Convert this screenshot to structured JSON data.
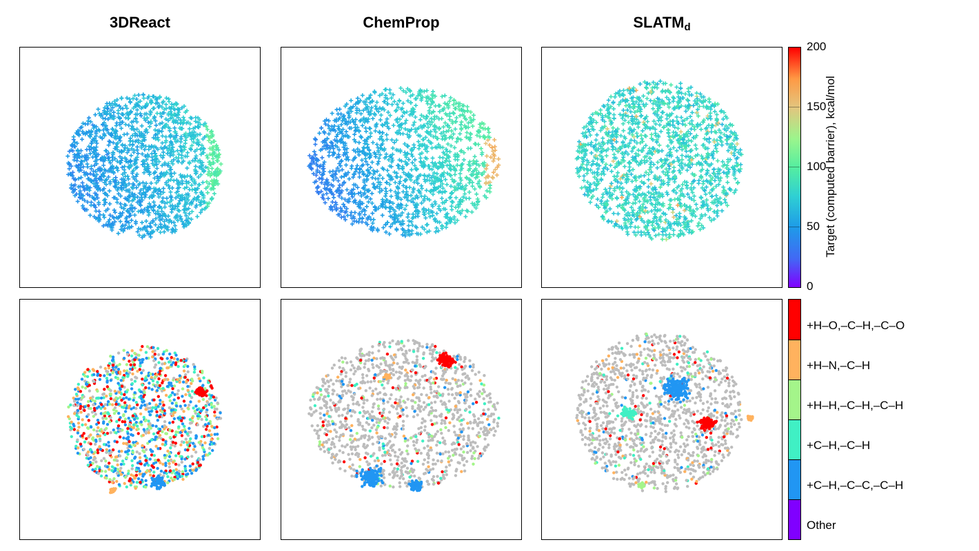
{
  "columns": [
    {
      "title": "3DReact",
      "sub": ""
    },
    {
      "title": "ChemProp",
      "sub": ""
    },
    {
      "title": "SLATM",
      "sub": "d"
    }
  ],
  "chart_data": [
    {
      "type": "scatter",
      "row": "top",
      "color_by": "continuous",
      "colorbar": {
        "label": "Target (computed barrier), kcal/mol",
        "range": [
          0,
          200
        ],
        "ticks": [
          "0",
          "50",
          "100",
          "150",
          "200"
        ],
        "colormap": "rainbow"
      },
      "panels": [
        "3DReact",
        "ChemProp",
        "SLATM_d"
      ]
    },
    {
      "type": "scatter",
      "row": "bottom",
      "color_by": "categorical",
      "legend": [
        {
          "label": "+H–O,–C–H,–C–O",
          "color": "#ff0000"
        },
        {
          "label": "+H–N,–C–H",
          "color": "#ffb25e"
        },
        {
          "label": "+H–H,–C–H,–C–H",
          "color": "#a4f58a"
        },
        {
          "label": "+C–H,–C–H",
          "color": "#40f0c4"
        },
        {
          "label": "+C–H,–C–C,–C–H",
          "color": "#2196f3"
        },
        {
          "label": "Other",
          "color": "#8000ff"
        }
      ],
      "other_point_color": "#bdbdbd",
      "panels": [
        "3DReact",
        "ChemProp",
        "SLATM_d"
      ]
    }
  ]
}
